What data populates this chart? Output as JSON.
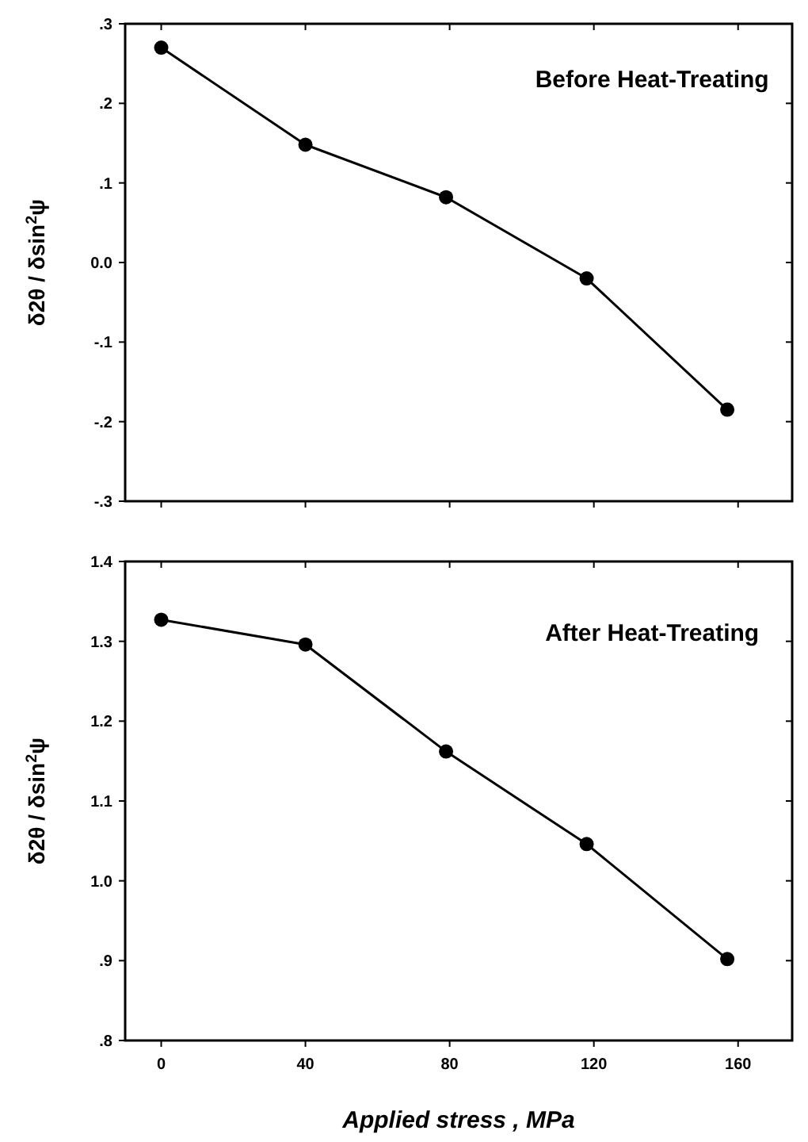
{
  "chart_data": [
    {
      "type": "line",
      "annotations": [
        "Before Heat-Treating"
      ],
      "ylabel": "δ2θ / δsin$^{2}$ψ",
      "x": [
        0,
        40,
        79,
        118,
        157
      ],
      "series": [
        {
          "color": "#000000",
          "values": [
            0.27,
            0.148,
            0.082,
            -0.02,
            -0.185
          ]
        }
      ],
      "xlim": [
        -10,
        175
      ],
      "xticks": [
        0,
        40,
        80,
        120,
        160
      ],
      "ylim": [
        -0.3,
        0.3
      ],
      "yticks": [
        {
          "value": -0.3,
          "label": "-.3"
        },
        {
          "value": -0.2,
          "label": "-.2"
        },
        {
          "value": -0.1,
          "label": "-.1"
        },
        {
          "value": 0,
          "label": "0.0"
        },
        {
          "value": 0.1,
          "label": ".1"
        },
        {
          "value": 0.2,
          "label": ".2"
        },
        {
          "value": 0.3,
          "label": ".3"
        }
      ],
      "tick_labels": "y",
      "marker": "circle",
      "line_style": "solid",
      "grid": false
    },
    {
      "type": "line",
      "annotations": [
        "After Heat-Treating"
      ],
      "ylabel": "δ2θ / δsin$^{2}$ψ",
      "xlabel": "Applied stress , MPa",
      "x": [
        0,
        40,
        79,
        118,
        157
      ],
      "series": [
        {
          "color": "#000000",
          "values": [
            1.327,
            1.296,
            1.162,
            1.046,
            0.902
          ]
        }
      ],
      "xlim": [
        -10,
        175
      ],
      "xticks": [
        0,
        40,
        80,
        120,
        160
      ],
      "ylim": [
        0.8,
        1.4
      ],
      "yticks": [
        {
          "value": 0.8,
          "label": ".8"
        },
        {
          "value": 0.9,
          "label": ".9"
        },
        {
          "value": 1.0,
          "label": "1.0"
        },
        {
          "value": 1.1,
          "label": "1.1"
        },
        {
          "value": 1.2,
          "label": "1.2"
        },
        {
          "value": 1.3,
          "label": "1.3"
        },
        {
          "value": 1.4,
          "label": "1.4"
        }
      ],
      "marker": "circle",
      "line_style": "solid",
      "grid": false
    }
  ]
}
